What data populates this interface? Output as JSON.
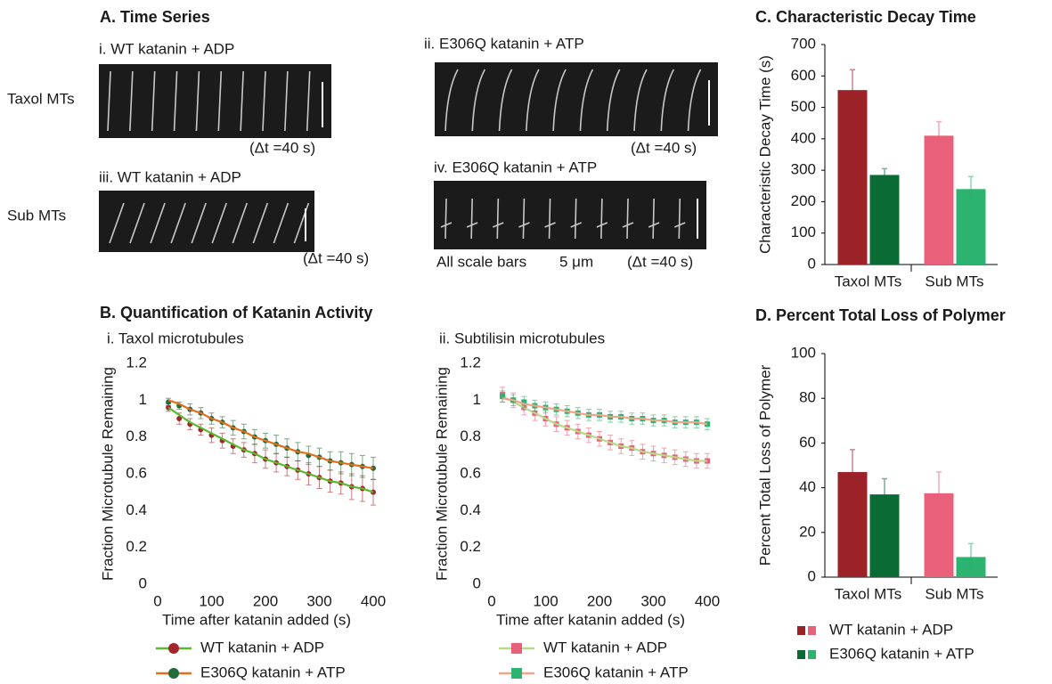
{
  "panel_a": {
    "title": "A. Time Series",
    "rows": [
      "Taxol MTs",
      "Sub MTs"
    ],
    "images": [
      {
        "label": "i. WT katanin + ADP",
        "interval": "(Δt =40 s)"
      },
      {
        "label": "ii. E306Q katanin + ATP",
        "interval": "(Δt =40 s)"
      },
      {
        "label": "iii. WT katanin + ADP",
        "interval": "(Δt =40 s)"
      },
      {
        "label": "iv. E306Q katanin + ATP",
        "interval": "(Δt =40 s)"
      }
    ],
    "scale_note": "All scale bars",
    "scale": "5 μm"
  },
  "panel_b_title": "B. Quantification of Katanin Activity",
  "chart_data": [
    {
      "type": "line",
      "title": "i. Taxol microtubules",
      "x_label": "Time after katanin added (s)",
      "y_label": "Fraction Microtubule Remaining",
      "marker": "circle",
      "x": [
        20,
        40,
        60,
        80,
        100,
        120,
        140,
        160,
        180,
        200,
        220,
        240,
        260,
        280,
        300,
        320,
        340,
        360,
        380,
        400
      ],
      "xlim": [
        0,
        400
      ],
      "xticks": [
        0,
        100,
        200,
        300,
        400
      ],
      "ylim": [
        0,
        1.2
      ],
      "yticks": [
        0,
        0.2,
        0.4,
        0.6,
        0.8,
        1,
        1.2
      ],
      "series": [
        {
          "name": "WT katanin + ADP",
          "color": "#a3262c",
          "fit_color": "#5cb82e",
          "values": [
            0.96,
            0.9,
            0.87,
            0.84,
            0.81,
            0.78,
            0.75,
            0.73,
            0.71,
            0.68,
            0.66,
            0.64,
            0.62,
            0.6,
            0.58,
            0.56,
            0.55,
            0.53,
            0.52,
            0.5
          ],
          "errors": [
            0.02,
            0.03,
            0.03,
            0.03,
            0.04,
            0.04,
            0.04,
            0.04,
            0.05,
            0.05,
            0.05,
            0.05,
            0.05,
            0.06,
            0.06,
            0.06,
            0.06,
            0.07,
            0.07,
            0.07
          ],
          "fit": [
            0.96,
            0.92,
            0.88,
            0.85,
            0.82,
            0.79,
            0.76,
            0.73,
            0.71,
            0.68,
            0.66,
            0.64,
            0.62,
            0.6,
            0.58,
            0.56,
            0.55,
            0.53,
            0.52,
            0.5
          ]
        },
        {
          "name": "E306Q katanin + ATP",
          "color": "#1f6b3a",
          "fit_color": "#e36f1e",
          "values": [
            0.99,
            0.97,
            0.95,
            0.93,
            0.9,
            0.88,
            0.85,
            0.83,
            0.8,
            0.78,
            0.76,
            0.74,
            0.72,
            0.7,
            0.69,
            0.67,
            0.66,
            0.65,
            0.64,
            0.63
          ],
          "errors": [
            0.02,
            0.02,
            0.03,
            0.03,
            0.03,
            0.03,
            0.04,
            0.04,
            0.04,
            0.04,
            0.05,
            0.05,
            0.05,
            0.05,
            0.05,
            0.05,
            0.06,
            0.06,
            0.06,
            0.06
          ],
          "fit": [
            1,
            0.98,
            0.95,
            0.93,
            0.9,
            0.88,
            0.85,
            0.83,
            0.8,
            0.78,
            0.76,
            0.74,
            0.72,
            0.71,
            0.69,
            0.67,
            0.66,
            0.65,
            0.64,
            0.63
          ]
        }
      ]
    },
    {
      "type": "line",
      "title": "ii. Subtilisin microtubules",
      "x_label": "Time after katanin added (s)",
      "y_label": "Fraction Microtubule Remaining",
      "marker": "square",
      "x": [
        20,
        40,
        60,
        80,
        100,
        120,
        140,
        160,
        180,
        200,
        220,
        240,
        260,
        280,
        300,
        320,
        340,
        360,
        380,
        400
      ],
      "xlim": [
        0,
        400
      ],
      "xticks": [
        0,
        100,
        200,
        300,
        400
      ],
      "ylim": [
        0,
        1.2
      ],
      "yticks": [
        0,
        0.2,
        0.4,
        0.6,
        0.8,
        1,
        1.2
      ],
      "series": [
        {
          "name": "WT katanin + ADP",
          "color": "#e8607a",
          "fit_color": "#b9d98a",
          "values": [
            1.03,
            1,
            0.96,
            0.93,
            0.9,
            0.87,
            0.85,
            0.83,
            0.81,
            0.79,
            0.77,
            0.75,
            0.74,
            0.72,
            0.71,
            0.7,
            0.69,
            0.68,
            0.67,
            0.67
          ],
          "errors": [
            0.04,
            0.04,
            0.04,
            0.04,
            0.04,
            0.04,
            0.04,
            0.04,
            0.04,
            0.04,
            0.04,
            0.04,
            0.04,
            0.04,
            0.04,
            0.04,
            0.04,
            0.04,
            0.04,
            0.04
          ],
          "fit": [
            1.02,
            0.99,
            0.96,
            0.93,
            0.9,
            0.87,
            0.85,
            0.83,
            0.81,
            0.79,
            0.77,
            0.75,
            0.74,
            0.72,
            0.71,
            0.7,
            0.69,
            0.68,
            0.67,
            0.67
          ]
        },
        {
          "name": "E306Q katanin + ATP",
          "color": "#2cb36f",
          "fit_color": "#f0a58a",
          "values": [
            1.02,
            1,
            0.99,
            0.97,
            0.96,
            0.95,
            0.94,
            0.93,
            0.92,
            0.92,
            0.91,
            0.91,
            0.9,
            0.9,
            0.89,
            0.89,
            0.88,
            0.88,
            0.88,
            0.87
          ],
          "errors": [
            0.03,
            0.03,
            0.03,
            0.03,
            0.03,
            0.03,
            0.03,
            0.03,
            0.03,
            0.03,
            0.03,
            0.03,
            0.03,
            0.03,
            0.03,
            0.03,
            0.03,
            0.03,
            0.03,
            0.03
          ],
          "fit": [
            1.01,
            1,
            0.98,
            0.97,
            0.96,
            0.95,
            0.94,
            0.93,
            0.92,
            0.92,
            0.91,
            0.91,
            0.9,
            0.9,
            0.89,
            0.89,
            0.88,
            0.88,
            0.88,
            0.87
          ]
        }
      ]
    },
    {
      "type": "bar",
      "title": "C. Characteristic Decay Time",
      "y_label": "Characteristic Decay Time (s)",
      "categories": [
        "Taxol MTs",
        "Sub MTs"
      ],
      "ylim": [
        0,
        700
      ],
      "yticks": [
        0,
        100,
        200,
        300,
        400,
        500,
        600,
        700
      ],
      "series": [
        {
          "name": "WT katanin + ADP",
          "colors": [
            "#9b2226",
            "#e8607a"
          ],
          "values": [
            555,
            410
          ],
          "errors": [
            65,
            45
          ]
        },
        {
          "name": "E306Q katanin + ATP",
          "colors": [
            "#0b6b35",
            "#2cb36f"
          ],
          "values": [
            285,
            240
          ],
          "errors": [
            20,
            40
          ]
        }
      ]
    },
    {
      "type": "bar",
      "title": "D. Percent Total Loss of Polymer",
      "y_label": "Percent Total Loss of Polymer",
      "categories": [
        "Taxol MTs",
        "Sub MTs"
      ],
      "ylim": [
        0,
        100
      ],
      "yticks": [
        0,
        20,
        40,
        60,
        80,
        100
      ],
      "legend": "bottom",
      "series": [
        {
          "name": "WT katanin + ADP",
          "colors": [
            "#9b2226",
            "#e8607a"
          ],
          "text_color": "#e8302f",
          "values": [
            47,
            37.5
          ],
          "errors": [
            10,
            9.5
          ]
        },
        {
          "name": "E306Q katanin + ATP",
          "colors": [
            "#0b6b35",
            "#2cb36f"
          ],
          "text_color": "#2cb36f",
          "values": [
            37,
            9
          ],
          "errors": [
            7,
            6
          ]
        }
      ]
    }
  ]
}
